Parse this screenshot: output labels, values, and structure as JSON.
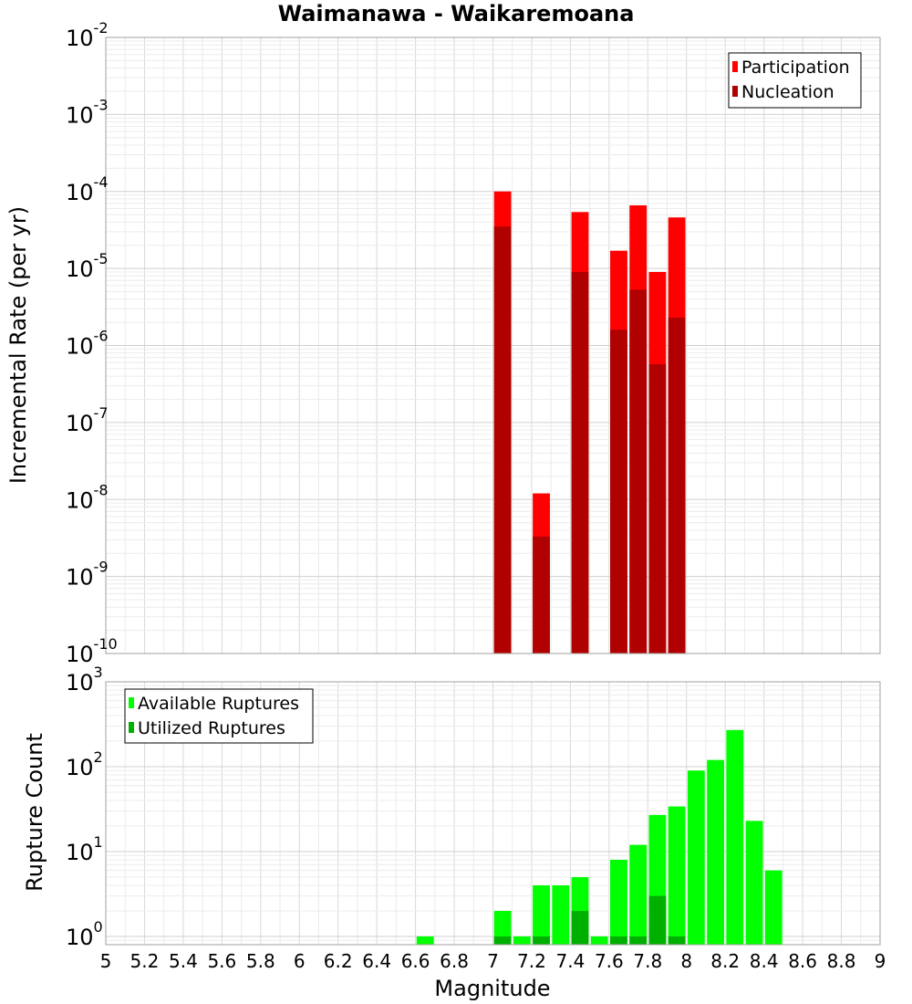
{
  "chart_data": [
    {
      "type": "bar",
      "title": "Waimanawa - Waikaremoana",
      "xlabel": "",
      "ylabel": "Incremental Rate (per yr)",
      "yscale": "log",
      "ylim": [
        1e-10,
        0.01
      ],
      "xlim": [
        5,
        9
      ],
      "y_tick_exponents": [
        -10,
        -9,
        -8,
        -7,
        -6,
        -5,
        -4,
        -3,
        -2
      ],
      "y_tick_base": "10",
      "bar_width": 0.1,
      "legend_position": "top-right",
      "series": [
        {
          "name": "Participation",
          "color": "#ff0000",
          "points": [
            {
              "x": 7.05,
              "y": 0.0001
            },
            {
              "x": 7.25,
              "y": 1.2e-08
            },
            {
              "x": 7.45,
              "y": 5.4e-05
            },
            {
              "x": 7.65,
              "y": 1.7e-05
            },
            {
              "x": 7.75,
              "y": 6.6e-05
            },
            {
              "x": 7.85,
              "y": 9e-06
            },
            {
              "x": 7.95,
              "y": 4.6e-05
            }
          ]
        },
        {
          "name": "Nucleation",
          "color": "#b00000",
          "points": [
            {
              "x": 7.05,
              "y": 3.5e-05
            },
            {
              "x": 7.25,
              "y": 3.3e-09
            },
            {
              "x": 7.45,
              "y": 9e-06
            },
            {
              "x": 7.65,
              "y": 1.6e-06
            },
            {
              "x": 7.75,
              "y": 5.3e-06
            },
            {
              "x": 7.85,
              "y": 5.7e-07
            },
            {
              "x": 7.95,
              "y": 2.3e-06
            }
          ]
        }
      ]
    },
    {
      "type": "bar",
      "title": "",
      "xlabel": "Magnitude",
      "ylabel": "Rupture Count",
      "yscale": "log",
      "ylim": [
        0.8,
        1000
      ],
      "xlim": [
        5,
        9
      ],
      "y_tick_exponents": [
        0,
        1,
        2,
        3
      ],
      "y_tick_base": "10",
      "x_ticks": [
        "5",
        "5.2",
        "5.4",
        "5.6",
        "5.8",
        "6",
        "6.2",
        "6.4",
        "6.6",
        "6.8",
        "7",
        "7.2",
        "7.4",
        "7.6",
        "7.8",
        "8",
        "8.2",
        "8.4",
        "8.6",
        "8.8",
        "9"
      ],
      "bar_width": 0.1,
      "legend_position": "top-left",
      "series": [
        {
          "name": "Available Ruptures",
          "color": "#00ff00",
          "points": [
            {
              "x": 6.65,
              "y": 1
            },
            {
              "x": 7.05,
              "y": 2
            },
            {
              "x": 7.15,
              "y": 1
            },
            {
              "x": 7.25,
              "y": 4
            },
            {
              "x": 7.35,
              "y": 4
            },
            {
              "x": 7.45,
              "y": 5
            },
            {
              "x": 7.55,
              "y": 1
            },
            {
              "x": 7.65,
              "y": 8
            },
            {
              "x": 7.75,
              "y": 12
            },
            {
              "x": 7.85,
              "y": 27
            },
            {
              "x": 7.95,
              "y": 34
            },
            {
              "x": 8.05,
              "y": 90
            },
            {
              "x": 8.15,
              "y": 120
            },
            {
              "x": 8.25,
              "y": 270
            },
            {
              "x": 8.35,
              "y": 23
            },
            {
              "x": 8.45,
              "y": 6
            }
          ]
        },
        {
          "name": "Utilized Ruptures",
          "color": "#00b000",
          "points": [
            {
              "x": 7.05,
              "y": 1
            },
            {
              "x": 7.25,
              "y": 1
            },
            {
              "x": 7.45,
              "y": 2
            },
            {
              "x": 7.65,
              "y": 1
            },
            {
              "x": 7.75,
              "y": 1
            },
            {
              "x": 7.85,
              "y": 3
            },
            {
              "x": 7.95,
              "y": 1
            }
          ]
        }
      ]
    }
  ]
}
